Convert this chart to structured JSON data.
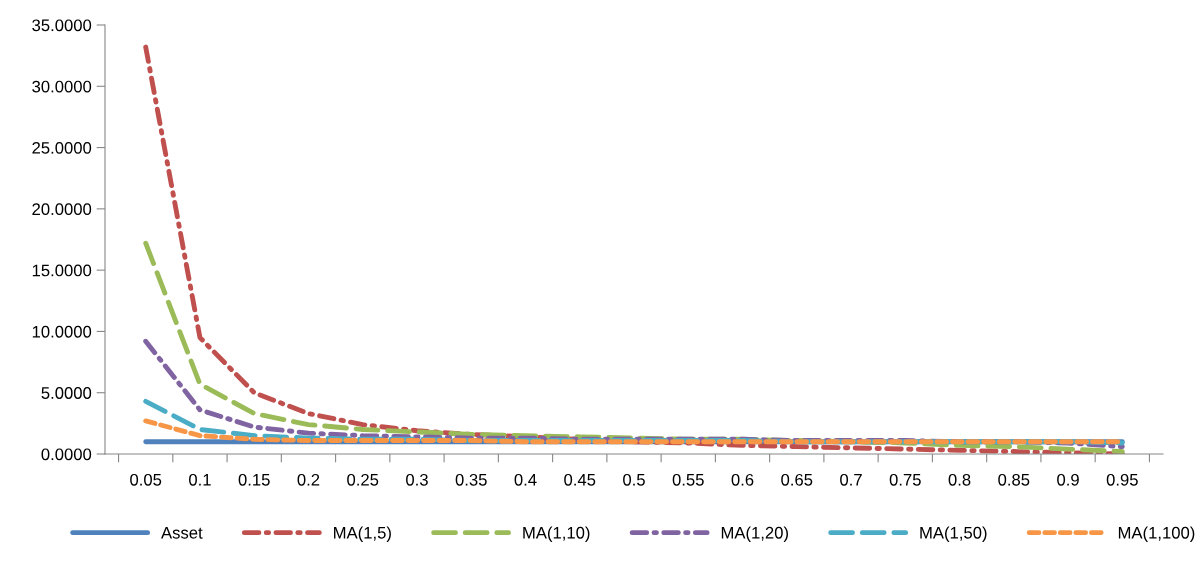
{
  "chart_data": {
    "type": "line",
    "categories": [
      "0.05",
      "0.1",
      "0.15",
      "0.2",
      "0.25",
      "0.3",
      "0.35",
      "0.4",
      "0.45",
      "0.5",
      "0.55",
      "0.6",
      "0.65",
      "0.7",
      "0.75",
      "0.8",
      "0.85",
      "0.9",
      "0.95"
    ],
    "series": [
      {
        "name": "Asset",
        "color": "#4f81bd",
        "line_style": "solid",
        "values": [
          1,
          1,
          1,
          1,
          1,
          1,
          1,
          1,
          1,
          1,
          1,
          1,
          1,
          1,
          1,
          1,
          1,
          1,
          1
        ]
      },
      {
        "name": "MA(1,5)",
        "color": "#c0504d",
        "line_style": "dashdot",
        "values": [
          33.2,
          9.5,
          5.0,
          3.3,
          2.4,
          1.9,
          1.6,
          1.4,
          1.2,
          1.0,
          0.9,
          0.7,
          0.6,
          0.5,
          0.4,
          0.3,
          0.2,
          0.1,
          0.0
        ]
      },
      {
        "name": "MA(1,10)",
        "color": "#9bbb59",
        "line_style": "dashed",
        "values": [
          17.2,
          5.7,
          3.3,
          2.4,
          2.0,
          1.8,
          1.6,
          1.5,
          1.4,
          1.3,
          1.2,
          1.2,
          1.1,
          1.0,
          0.9,
          0.7,
          0.6,
          0.4,
          0.2
        ]
      },
      {
        "name": "MA(1,20)",
        "color": "#8064a2",
        "line_style": "dashdot",
        "values": [
          9.2,
          3.6,
          2.2,
          1.7,
          1.5,
          1.4,
          1.3,
          1.3,
          1.2,
          1.2,
          1.2,
          1.2,
          1.1,
          1.1,
          1.1,
          1.0,
          1.0,
          0.9,
          0.6
        ]
      },
      {
        "name": "MA(1,50)",
        "color": "#4bacc6",
        "line_style": "dashed",
        "values": [
          4.3,
          2.0,
          1.5,
          1.3,
          1.2,
          1.2,
          1.1,
          1.1,
          1.1,
          1.1,
          1.1,
          1.1,
          1.0,
          1.0,
          1.0,
          1.0,
          1.0,
          1.0,
          0.9
        ]
      },
      {
        "name": "MA(1,100)",
        "color": "#f79646",
        "line_style": "dotted",
        "values": [
          2.7,
          1.5,
          1.2,
          1.1,
          1.1,
          1.1,
          1.1,
          1.0,
          1.0,
          1.0,
          1.0,
          1.0,
          1.0,
          1.0,
          1.0,
          1.0,
          1.0,
          1.0,
          1.0
        ]
      }
    ],
    "ylim": [
      0,
      35
    ],
    "yticks": [
      {
        "value": 0,
        "label": "0.0000"
      },
      {
        "value": 5,
        "label": "5.0000"
      },
      {
        "value": 10,
        "label": "10.0000"
      },
      {
        "value": 15,
        "label": "15.0000"
      },
      {
        "value": 20,
        "label": "20.0000"
      },
      {
        "value": 25,
        "label": "25.0000"
      },
      {
        "value": 30,
        "label": "30.0000"
      },
      {
        "value": 35,
        "label": "35.0000"
      }
    ],
    "grid": false,
    "legend": "bottom",
    "marker": "none"
  }
}
